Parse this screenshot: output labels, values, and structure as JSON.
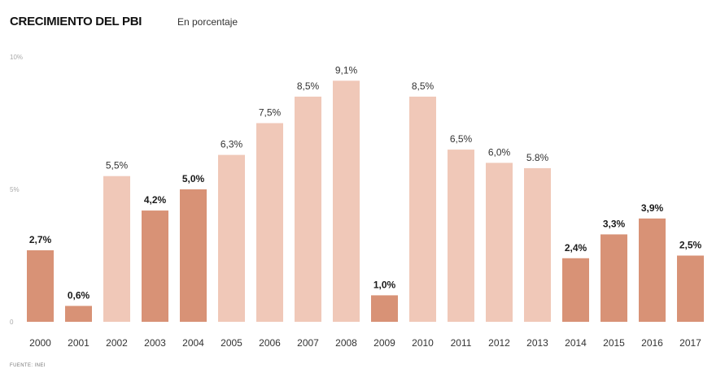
{
  "header": {
    "title": "CRECIMIENTO DEL PBI",
    "subtitle": "En porcentaje"
  },
  "footer": {
    "source": "FUENTE: INEI"
  },
  "colors": {
    "dark_bar": "#d89276",
    "light_bar": "#f0c8b8",
    "bold_label": "#1a1a1a",
    "light_label": "#333333",
    "tick_label": "#aaaaaa"
  },
  "chart_data": {
    "type": "bar",
    "title": "CRECIMIENTO DEL PBI",
    "subtitle": "En porcentaje",
    "ylim": [
      0,
      10
    ],
    "yticks": [
      {
        "value": 0,
        "label": "0"
      },
      {
        "value": 5,
        "label": "5%"
      },
      {
        "value": 10,
        "label": "10%"
      }
    ],
    "grid": false,
    "categories": [
      "2000",
      "2001",
      "2002",
      "2003",
      "2004",
      "2005",
      "2006",
      "2007",
      "2008",
      "2009",
      "2010",
      "2011",
      "2012",
      "2013",
      "2014",
      "2015",
      "2016",
      "2017"
    ],
    "values": [
      2.7,
      0.6,
      5.5,
      4.2,
      5.0,
      6.3,
      7.5,
      8.5,
      9.1,
      1.0,
      8.5,
      6.5,
      6.0,
      5.8,
      2.4,
      3.3,
      3.9,
      2.5
    ],
    "labels": [
      "2,7%",
      "0,6%",
      "5,5%",
      "4,2%",
      "5,0%",
      "6,3%",
      "7,5%",
      "8,5%",
      "9,1%",
      "1,0%",
      "8,5%",
      "6,5%",
      "6,0%",
      "5.8%",
      "2,4%",
      "3,3%",
      "3,9%",
      "2,5%"
    ],
    "highlighted": [
      true,
      true,
      false,
      true,
      true,
      false,
      false,
      false,
      false,
      true,
      false,
      false,
      false,
      false,
      true,
      true,
      true,
      true
    ]
  }
}
